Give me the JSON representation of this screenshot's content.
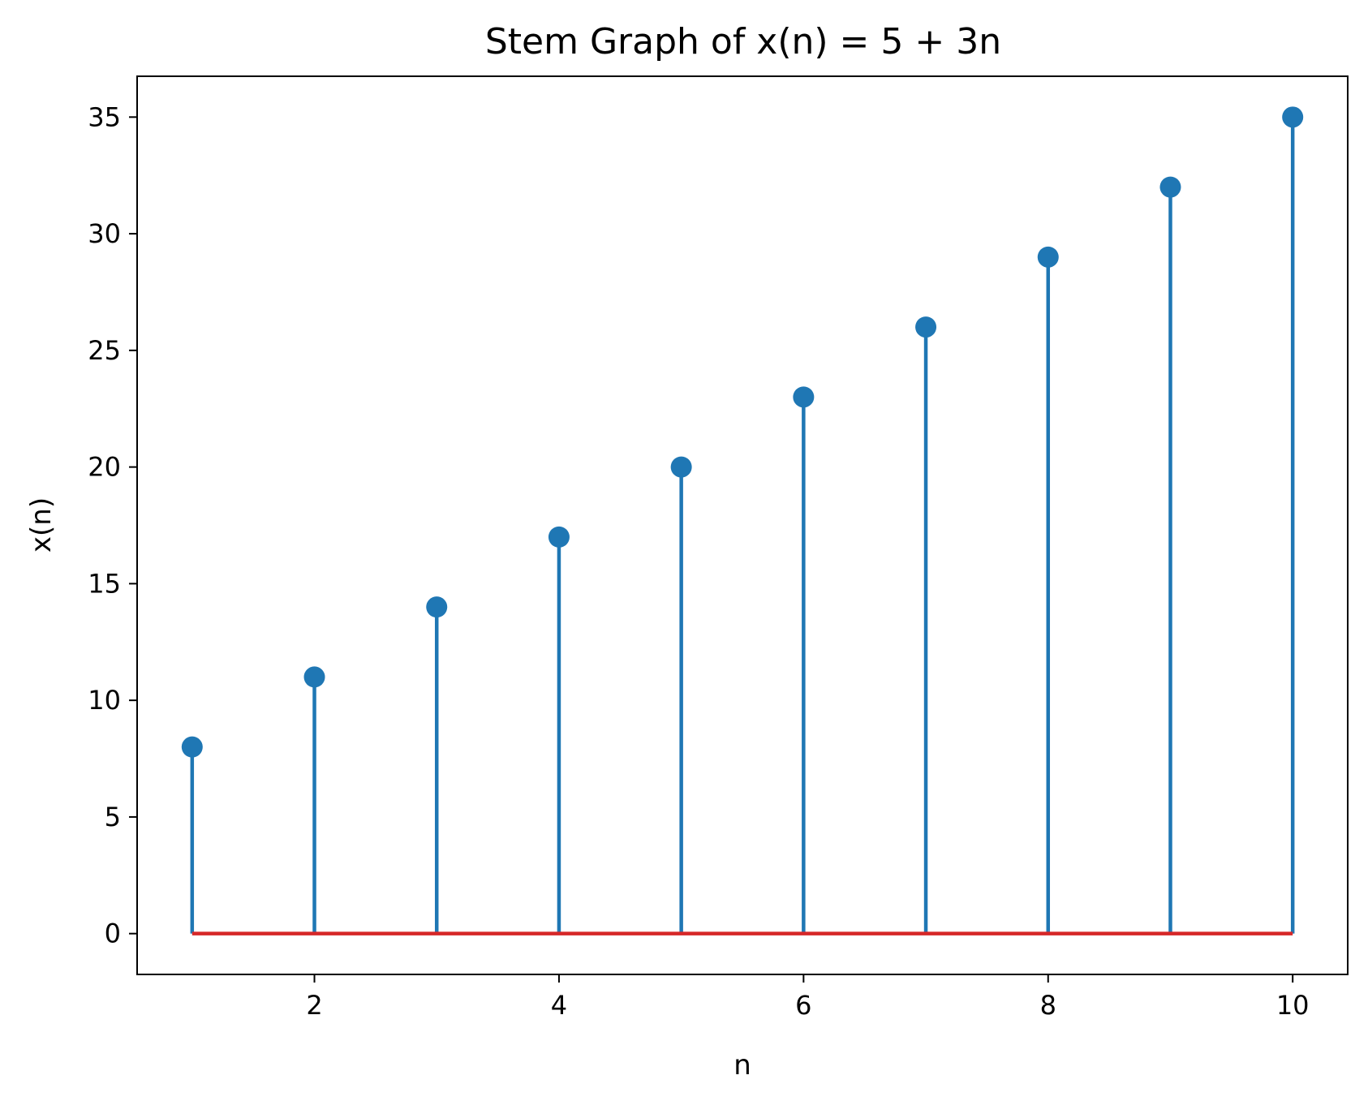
{
  "chart_data": {
    "type": "stem",
    "title": "Stem Graph of x(n) = 5 + 3n",
    "xlabel": "n",
    "ylabel": "x(n)",
    "x": [
      1,
      2,
      3,
      4,
      5,
      6,
      7,
      8,
      9,
      10
    ],
    "y": [
      8,
      11,
      14,
      17,
      20,
      23,
      26,
      29,
      32,
      35
    ],
    "xlim": [
      0.55,
      10.45
    ],
    "ylim": [
      -1.75,
      36.75
    ],
    "xticks": [
      2,
      4,
      6,
      8,
      10
    ],
    "yticks": [
      0,
      5,
      10,
      15,
      20,
      25,
      30,
      35
    ],
    "baseline": 0,
    "grid": false,
    "colors": {
      "stem": "#1f77b4",
      "marker": "#1f77b4",
      "baseline": "#d62728"
    }
  }
}
